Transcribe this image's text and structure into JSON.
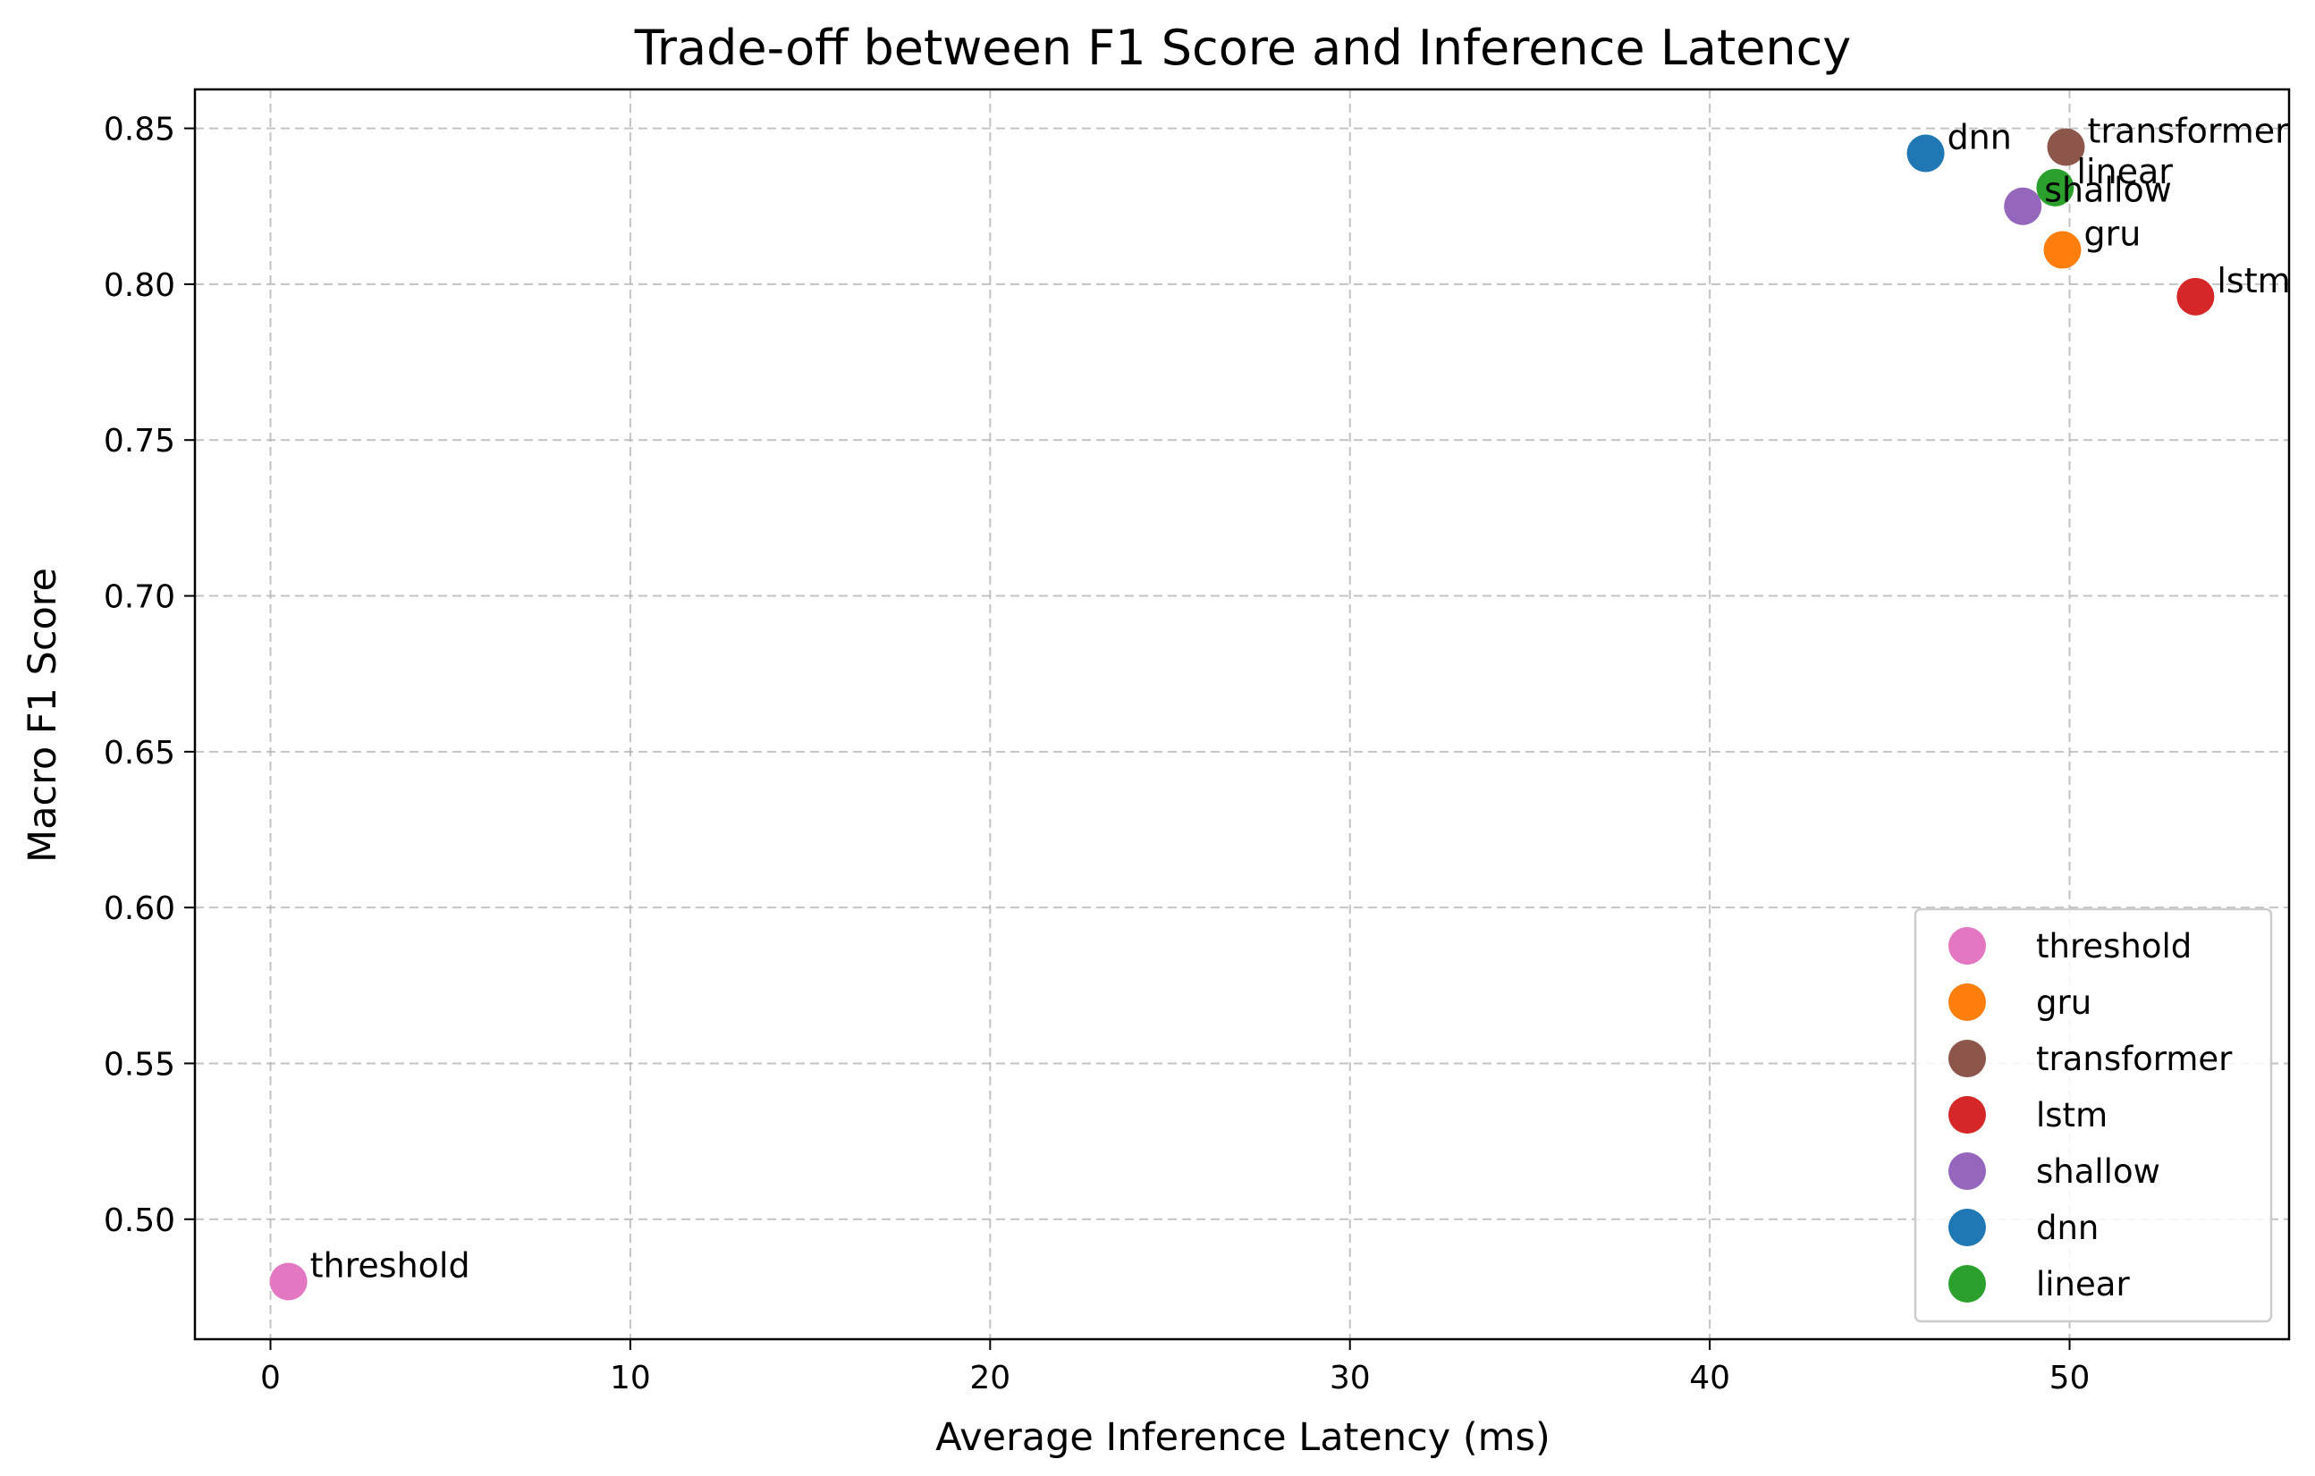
{
  "chart_data": {
    "type": "scatter",
    "title": "Trade-off between F1 Score and Inference Latency",
    "xlabel": "Average Inference Latency (ms)",
    "ylabel": "Macro F1 Score",
    "xlim": [
      -2.1,
      56.1
    ],
    "ylim": [
      0.4615,
      0.8625
    ],
    "xticks": [
      0,
      10,
      20,
      30,
      40,
      50
    ],
    "xtick_labels": [
      "0",
      "10",
      "20",
      "30",
      "40",
      "50"
    ],
    "yticks": [
      0.5,
      0.55,
      0.6,
      0.65,
      0.7,
      0.75,
      0.8,
      0.85
    ],
    "ytick_labels": [
      "0.50",
      "0.55",
      "0.60",
      "0.65",
      "0.70",
      "0.75",
      "0.80",
      "0.85"
    ],
    "grid": true,
    "legend_position": "lower-right",
    "series": [
      {
        "name": "threshold",
        "color": "#e377c2",
        "x": 0.5,
        "y": 0.48
      },
      {
        "name": "gru",
        "color": "#ff7f0e",
        "x": 49.8,
        "y": 0.811
      },
      {
        "name": "transformer",
        "color": "#8c564b",
        "x": 49.9,
        "y": 0.844
      },
      {
        "name": "lstm",
        "color": "#d62728",
        "x": 53.5,
        "y": 0.796
      },
      {
        "name": "shallow",
        "color": "#9467bd",
        "x": 48.7,
        "y": 0.825
      },
      {
        "name": "dnn",
        "color": "#1f77b4",
        "x": 46.0,
        "y": 0.842
      },
      {
        "name": "linear",
        "color": "#2ca02c",
        "x": 49.6,
        "y": 0.831
      }
    ]
  }
}
